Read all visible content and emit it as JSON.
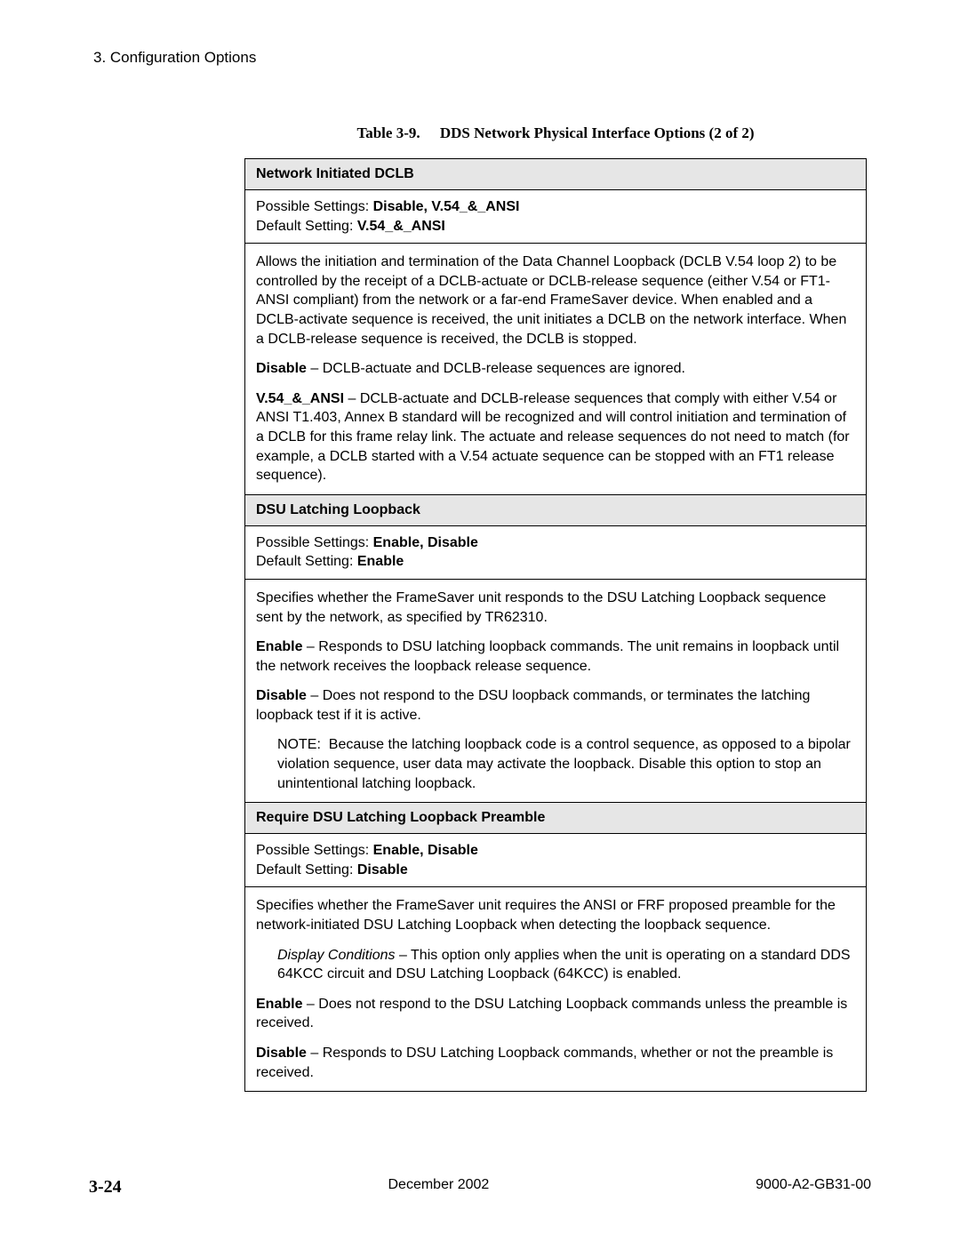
{
  "header": {
    "section": "3. Configuration Options"
  },
  "table": {
    "title_label": "Table 3-9.",
    "title_text": "DDS Network Physical Interface Options (2 of 2)"
  },
  "section1": {
    "header": "Network Initiated DCLB",
    "settings_label": "Possible Settings: ",
    "settings_value": "Disable, V.54_&_ANSI",
    "default_label": "Default Setting: ",
    "default_value": "V.54_&_ANSI",
    "para1": "Allows the initiation and termination of the Data Channel Loopback (DCLB V.54 loop 2) to be controlled by the receipt of a DCLB-actuate or DCLB-release sequence (either V.54 or FT1-ANSI compliant) from the network or a far-end FrameSaver device. When enabled and a DCLB-activate sequence is received, the unit initiates a DCLB on the network interface. When a DCLB-release sequence is received, the DCLB is stopped.",
    "para2_bold": "Disable",
    "para2_text": " – DCLB-actuate and DCLB-release sequences are ignored.",
    "para3_bold": "V.54_&_ANSI",
    "para3_text": " – DCLB-actuate and DCLB-release sequences that comply with either V.54 or ANSI T1.403, Annex B standard will be recognized and will control initiation and termination of a DCLB for this frame relay link. The actuate and release sequences do not need to match (for example, a DCLB started with a V.54 actuate sequence can be stopped with an FT1 release sequence)."
  },
  "section2": {
    "header": "DSU Latching Loopback",
    "settings_label": "Possible Settings: ",
    "settings_value": "Enable, Disable",
    "default_label": "Default Setting: ",
    "default_value": "Enable",
    "para1": "Specifies whether the FrameSaver unit responds to the DSU Latching Loopback sequence sent by the network, as specified by TR62310.",
    "para2_bold": "Enable",
    "para2_text": " – Responds to DSU latching loopback commands. The unit remains in loopback until the network receives the loopback release sequence.",
    "para3_bold": "Disable",
    "para3_text": " – Does not respond to the DSU loopback commands, or terminates the latching loopback test if it is active.",
    "note": "NOTE:  Because the latching loopback code is a control sequence, as opposed to a bipolar violation sequence, user data may activate the loopback. Disable this option to stop an unintentional latching loopback."
  },
  "section3": {
    "header": "Require DSU Latching Loopback Preamble",
    "settings_label": "Possible Settings: ",
    "settings_value": "Enable, Disable",
    "default_label": "Default Setting: ",
    "default_value": "Disable",
    "para1": "Specifies whether the FrameSaver unit requires the ANSI or FRF proposed preamble for the network-initiated DSU Latching Loopback when detecting the loopback sequence.",
    "display_italic": "Display Conditions",
    "display_text": " – This option only applies when the unit is operating on a standard DDS 64KCC circuit and DSU Latching Loopback (64KCC) is enabled.",
    "para3_bold": "Enable",
    "para3_text": " – Does not respond to the DSU Latching Loopback commands unless the preamble is received.",
    "para4_bold": "Disable",
    "para4_text": " – Responds to DSU Latching Loopback commands, whether or not the preamble is received."
  },
  "footer": {
    "page_num": "3-24",
    "date": "December 2002",
    "doc_id": "9000-A2-GB31-00"
  }
}
